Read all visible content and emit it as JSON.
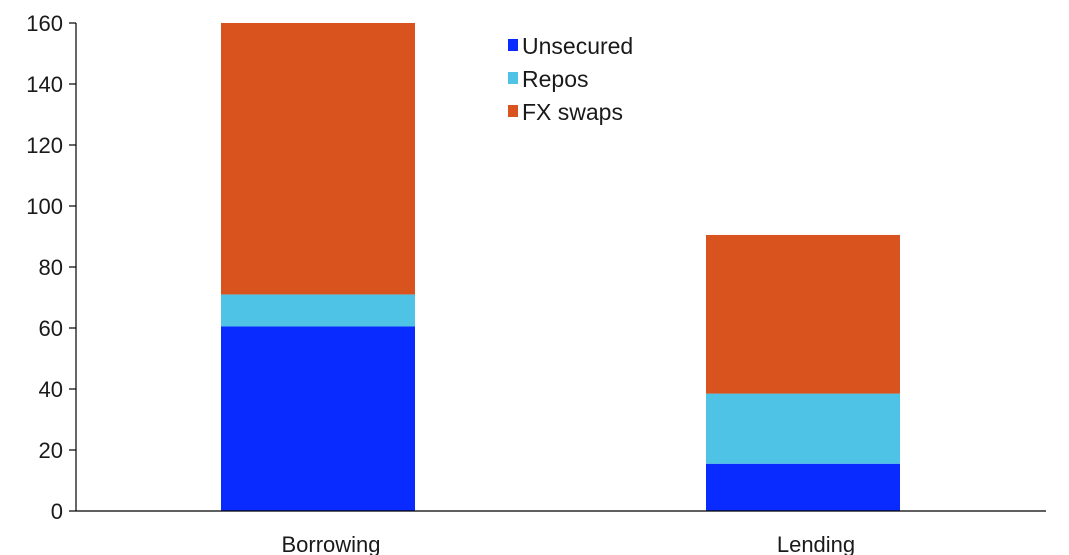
{
  "chart_data": {
    "type": "bar",
    "stacked": true,
    "categories": [
      "Borrowing",
      "Lending"
    ],
    "series": [
      {
        "name": "Unsecured",
        "color": "#0a2bff",
        "values": [
          60.5,
          15.5
        ]
      },
      {
        "name": "Repos",
        "color": "#4ec3e6",
        "values": [
          10.5,
          23
        ]
      },
      {
        "name": "FX swaps",
        "color": "#d9531e",
        "values": [
          89,
          52
        ]
      }
    ],
    "yticks": [
      "0",
      "20",
      "40",
      "60",
      "80",
      "100",
      "120",
      "140",
      "160"
    ],
    "ylim": [
      0,
      160
    ],
    "legend_position": "top-center",
    "grid": false
  }
}
